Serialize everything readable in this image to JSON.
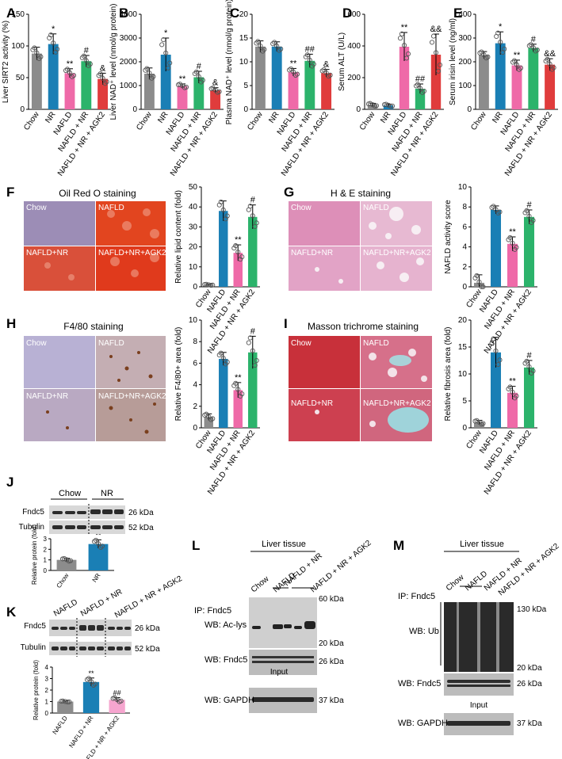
{
  "panel_labels": [
    "A",
    "B",
    "C",
    "D",
    "E",
    "F",
    "G",
    "H",
    "I",
    "J",
    "K",
    "L",
    "M"
  ],
  "colors": {
    "gray": "#8c8c8c",
    "blue": "#1a7fb5",
    "pink": "#ef6aa8",
    "green": "#2cb36b",
    "red": "#e03c3c",
    "paleblue": "#3d8fc4",
    "palepink": "#f6a5cf"
  },
  "chart_data": [
    {
      "id": "A",
      "type": "bar",
      "ylabel": "Liver SIRT2 activity (%)",
      "ylim": [
        0,
        150
      ],
      "yticks": [
        "0",
        "50",
        "100",
        "150"
      ],
      "categories": [
        "Chow",
        "NR",
        "NAFLD",
        "NAFLD + NR",
        "NAFLD + NR + AGK2"
      ],
      "values": [
        88,
        103,
        57,
        76,
        48
      ],
      "errors": [
        10,
        16,
        7,
        9,
        9
      ],
      "annotations": [
        "",
        "*",
        "**",
        "#",
        "&"
      ]
    },
    {
      "id": "B",
      "type": "bar",
      "ylabel": "Liver NAD⁺ level (nmol/g protein)",
      "ylim": [
        0,
        4000
      ],
      "yticks": [
        "0",
        "1000",
        "2000",
        "3000",
        "4000"
      ],
      "categories": [
        "Chow",
        "NR",
        "NAFLD",
        "NAFLD + NR",
        "NAFLD + NR + AGK2"
      ],
      "values": [
        1500,
        2300,
        980,
        1350,
        800
      ],
      "errors": [
        240,
        700,
        90,
        250,
        110
      ],
      "annotations": [
        "",
        "*",
        "**",
        "#",
        "&"
      ]
    },
    {
      "id": "C",
      "type": "bar",
      "ylabel": "Plasma NAD⁺ level (nmol/g protein)",
      "ylim": [
        0,
        20
      ],
      "yticks": [
        "0",
        "5",
        "10",
        "15",
        "20"
      ],
      "categories": [
        "Chow",
        "NR",
        "NAFLD",
        "NAFLD + NR",
        "NAFLD + NR + AGK2"
      ],
      "values": [
        13.2,
        13.2,
        7.8,
        10.2,
        7.6
      ],
      "errors": [
        1.2,
        1.0,
        0.8,
        1.4,
        0.8
      ],
      "annotations": [
        "",
        "",
        "**",
        "##",
        "&"
      ]
    },
    {
      "id": "D",
      "type": "bar",
      "ylabel": "Serum ALT (U/L)",
      "ylim": [
        0,
        600
      ],
      "yticks": [
        "0",
        "200",
        "400",
        "600"
      ],
      "categories": [
        "Chow",
        "NR",
        "NAFLD",
        "NAFLD + NR",
        "NAFLD + NR + AGK2"
      ],
      "values": [
        28,
        25,
        395,
        130,
        345
      ],
      "errors": [
        10,
        8,
        90,
        30,
        130
      ],
      "annotations": [
        "",
        "",
        "**",
        "##",
        "&&"
      ]
    },
    {
      "id": "E",
      "type": "bar",
      "ylabel": "Serum irisin level (ng/ml)",
      "ylim": [
        0,
        400
      ],
      "yticks": [
        "0",
        "100",
        "200",
        "300",
        "400"
      ],
      "categories": [
        "Chow",
        "NR",
        "NAFLD",
        "NAFLD + NR",
        "NAFLD + NR + AGK2"
      ],
      "values": [
        228,
        278,
        185,
        258,
        188
      ],
      "errors": [
        15,
        48,
        22,
        16,
        25
      ],
      "annotations": [
        "",
        "*",
        "**",
        "#",
        "&&"
      ]
    },
    {
      "id": "F",
      "type": "bar",
      "ylabel": "Relative lipid content (fold)",
      "ylim": [
        0,
        50
      ],
      "yticks": [
        "0",
        "10",
        "20",
        "30",
        "40",
        "50"
      ],
      "categories": [
        "Chow",
        "NAFLD",
        "NAFLD + NR",
        "NAFLD + NR + AGK2"
      ],
      "values": [
        1,
        38,
        17,
        35
      ],
      "errors": [
        0.3,
        5,
        4,
        6
      ],
      "annotations": [
        "",
        "",
        "**",
        "#"
      ]
    },
    {
      "id": "G",
      "type": "bar",
      "ylabel": "NAFLD activity score",
      "ylim": [
        0,
        10
      ],
      "yticks": [
        "0",
        "2",
        "4",
        "6",
        "8",
        "10"
      ],
      "categories": [
        "Chow",
        "NAFLD",
        "NAFLD + NR",
        "NAFLD + NR + AGK2"
      ],
      "values": [
        0.4,
        7.7,
        4.3,
        7.0
      ],
      "errors": [
        0.8,
        0.4,
        0.7,
        0.7
      ],
      "annotations": [
        "",
        "",
        "**",
        "#"
      ]
    },
    {
      "id": "H",
      "type": "bar",
      "ylabel": "Relative F4/80+ area (fold)",
      "ylim": [
        0,
        10
      ],
      "yticks": [
        "0",
        "2",
        "4",
        "6",
        "8",
        "10"
      ],
      "categories": [
        "Chow",
        "NAFLD",
        "NAFLD + NR",
        "NAFLD + NR + AGK2"
      ],
      "values": [
        1,
        6.4,
        3.5,
        7.0
      ],
      "errors": [
        0.3,
        0.6,
        0.7,
        1.5
      ],
      "annotations": [
        "",
        "",
        "**",
        "#"
      ]
    },
    {
      "id": "I",
      "type": "bar",
      "ylabel": "Relative fibrosis area (fold)",
      "ylim": [
        0,
        20
      ],
      "yticks": [
        "0",
        "5",
        "10",
        "15",
        "20"
      ],
      "categories": [
        "Chow",
        "NAFLD",
        "NAFLD + NR",
        "NAFLD + NR + AGK2"
      ],
      "values": [
        1,
        14,
        6.5,
        11.2
      ],
      "errors": [
        0.4,
        2.8,
        1.2,
        1.3
      ],
      "annotations": [
        "",
        "",
        "**",
        "#"
      ]
    },
    {
      "id": "J",
      "type": "bar",
      "ylabel": "Relative protein (fold)",
      "ylim": [
        0,
        3
      ],
      "yticks": [
        "0",
        "1",
        "2",
        "3"
      ],
      "categories": [
        "Chow",
        "NR"
      ],
      "values": [
        1.0,
        2.5
      ],
      "errors": [
        0.15,
        0.4
      ],
      "annotations": [
        "",
        "**"
      ]
    },
    {
      "id": "K",
      "type": "bar",
      "ylabel": "Relative protein (fold)",
      "ylim": [
        0,
        4
      ],
      "yticks": [
        "0",
        "1",
        "2",
        "3",
        "4"
      ],
      "categories": [
        "NAFLD",
        "NAFLD + NR",
        "NAFLD + NR + AGK2"
      ],
      "values": [
        1.0,
        2.7,
        1.15
      ],
      "errors": [
        0.05,
        0.35,
        0.2
      ],
      "annotations": [
        "",
        "**",
        "##"
      ]
    }
  ],
  "micrographs": {
    "F": {
      "title": "Oil Red O staining",
      "labels": [
        "Chow",
        "NAFLD",
        "NAFLD+NR",
        "NAFLD+NR+AGK2"
      ]
    },
    "G": {
      "title": "H & E staining",
      "labels": [
        "Chow",
        "NAFLD",
        "NAFLD+NR",
        "NAFLD+NR+AGK2"
      ]
    },
    "H": {
      "title": "F4/80 staining",
      "labels": [
        "Chow",
        "NAFLD",
        "NAFLD+NR",
        "NAFLD+NR+AGK2"
      ]
    },
    "I": {
      "title": "Masson trichrome staining",
      "labels": [
        "Chow",
        "NAFLD",
        "NAFLD+NR",
        "NAFLD+NR+AGK2"
      ]
    }
  },
  "blots": {
    "J": {
      "groups": [
        "Chow",
        "NR"
      ],
      "rows": [
        "Fndc5",
        "Tubulin"
      ],
      "kda": [
        "26 kDa",
        "52 kDa"
      ]
    },
    "K": {
      "groups": [
        "NAFLD",
        "NAFLD + NR",
        "NAFLD + NR + AGK2"
      ],
      "rows": [
        "Fndc5",
        "Tubulin"
      ],
      "kda": [
        "26 kDa",
        "52 kDa"
      ]
    },
    "L": {
      "header": "Liver tissue",
      "ip": "IP: Fndc5",
      "groups": [
        "Chow",
        "NAFLD",
        "NAFLD + NR",
        "NAFLD + NR + AGK2"
      ],
      "rows": [
        "WB: Ac-lys",
        "WB: Fndc5",
        "WB: GAPDH"
      ],
      "kda": [
        "60 kDa",
        "20 kDa",
        "26 kDa",
        "37 kDa"
      ],
      "input": "Input"
    },
    "M": {
      "header": "Liver tissue",
      "ip": "IP: Fndc5",
      "groups": [
        "Chow",
        "NAFLD",
        "NAFLD + NR",
        "NAFLD + NR + AGK2"
      ],
      "rows": [
        "WB: Ub",
        "WB: Fndc5",
        "WB: GAPDH"
      ],
      "kda": [
        "130 kDa",
        "20 kDa",
        "26 kDa",
        "37 kDa"
      ],
      "input": "Input"
    }
  }
}
